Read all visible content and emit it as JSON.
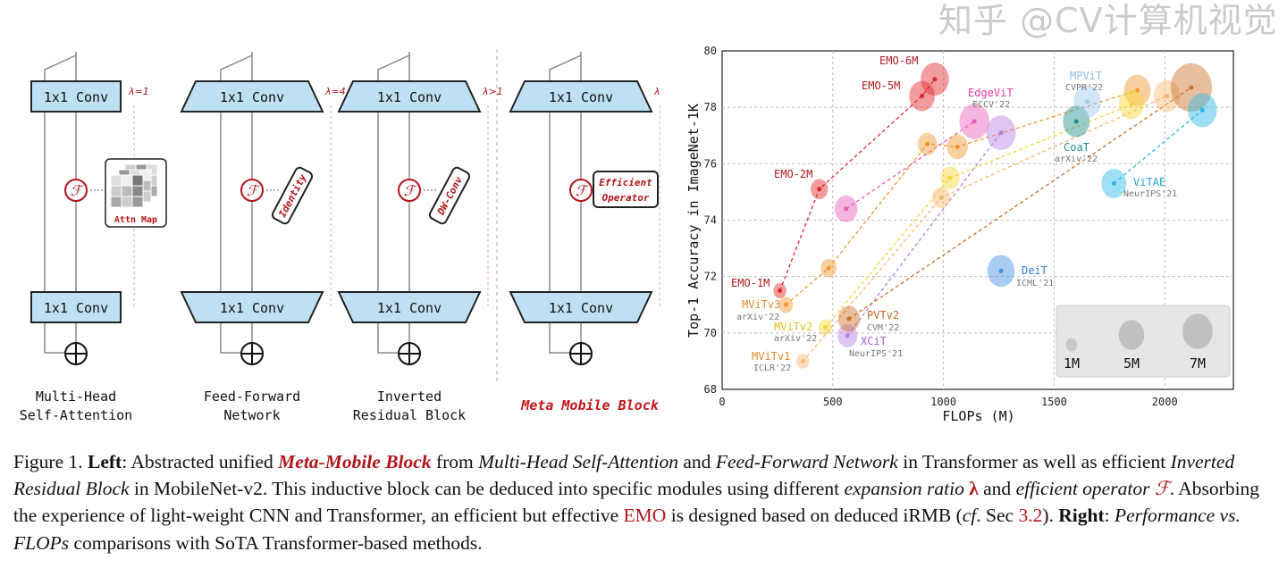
{
  "diagram": {
    "conv_label": "1x1 Conv",
    "columns": [
      {
        "name": "Multi-Head Self-Attention",
        "line1": "Multi-Head",
        "line2": "Self-Attention",
        "lambda": "λ=1",
        "operator": "Attn Map"
      },
      {
        "name": "Feed-Forward Network",
        "line1": "Feed-Forward",
        "line2": "Network",
        "lambda": "λ=4",
        "operator": "Identity"
      },
      {
        "name": "Inverted Residual Block",
        "line1": "Inverted",
        "line2": "Residual Block",
        "lambda": "λ>1",
        "operator": "DW-Conv"
      },
      {
        "name": "Meta Mobile Block",
        "line1": "Meta Mobile Block",
        "lambda": "λ",
        "operator1": "Efficient",
        "operator2": "Operator"
      }
    ],
    "f_symbol": "ℱ"
  },
  "chart_data": {
    "type": "scatter",
    "xlabel": "FLOPs (M)",
    "ylabel": "Top-1 Accuracy in ImageNet-1K",
    "xlim": [
      0,
      2310
    ],
    "ylim": [
      68,
      80
    ],
    "xticks": [
      0,
      500,
      1000,
      1500,
      2000
    ],
    "yticks": [
      68,
      70,
      72,
      74,
      76,
      78,
      80
    ],
    "grid": true,
    "size_legend": {
      "placement": "bottom-right",
      "entries": [
        {
          "label": "1M",
          "params": 1
        },
        {
          "label": "5M",
          "params": 5
        },
        {
          "label": "7M",
          "params": 7
        }
      ]
    },
    "series": [
      {
        "name": "EMO",
        "color": "#e0262b",
        "labels": [
          "EMO-1M",
          "EMO-2M",
          "EMO-5M",
          "EMO-6M"
        ],
        "points": [
          [
            261,
            71.5,
            1.3
          ],
          [
            439,
            75.1,
            2.3
          ],
          [
            903,
            78.4,
            5.1
          ],
          [
            961,
            79.0,
            6.1
          ]
        ]
      },
      {
        "name": "MViTv3",
        "venue": "arXiv'22",
        "color": "#f0962a",
        "points": [
          [
            288,
            71.0,
            1.5
          ],
          [
            481,
            72.3,
            1.9
          ],
          [
            927,
            76.7,
            2.8
          ],
          [
            1063,
            76.6,
            3.4
          ],
          [
            1876,
            78.6,
            5.5
          ]
        ]
      },
      {
        "name": "MViTv2",
        "venue": "arXiv'22",
        "color": "#f7d43a",
        "points": [
          [
            466,
            70.2,
            1.4
          ],
          [
            1030,
            75.5,
            2.9
          ],
          [
            1850,
            78.1,
            4.9
          ]
        ]
      },
      {
        "name": "MViTv1",
        "venue": "ICLR'22",
        "color": "#f8b870",
        "points": [
          [
            365,
            69.0,
            1.3
          ],
          [
            990,
            74.8,
            2.5
          ],
          [
            2010,
            78.4,
            5.6
          ]
        ]
      },
      {
        "name": "EdgeViT",
        "venue": "ECCV'22",
        "color": "#e85cb5",
        "points": [
          [
            560,
            74.4,
            4.0
          ],
          [
            1140,
            77.5,
            6.9
          ]
        ]
      },
      {
        "name": "XCiT",
        "venue": "NeurIPS'21",
        "color": "#b87fe0",
        "points": [
          [
            566,
            69.9,
            3.0
          ],
          [
            1260,
            77.1,
            6.7
          ]
        ]
      },
      {
        "name": "PVTv2",
        "venue": "CVM'22",
        "color": "#c9702a",
        "points": [
          [
            573,
            70.5,
            3.7
          ],
          [
            2120,
            78.7,
            13.1
          ]
        ]
      },
      {
        "name": "CoaT",
        "venue": "arXiv'22",
        "color": "#1c8f8a",
        "points": [
          [
            1600,
            77.5,
            5.5
          ]
        ]
      },
      {
        "name": "MPViT",
        "venue": "CVPR'22",
        "color": "#9cc9ea",
        "points": [
          [
            1650,
            78.2,
            5.8
          ]
        ]
      },
      {
        "name": "DeiT",
        "venue": "ICML'21",
        "color": "#3d8fe0",
        "points": [
          [
            1260,
            72.2,
            5.7
          ]
        ]
      },
      {
        "name": "ViTAE",
        "venue": "NeurIPS'21",
        "color": "#2ab8e6",
        "points": [
          [
            1770,
            75.3,
            4.8
          ],
          [
            2170,
            77.9,
            6.5
          ]
        ]
      }
    ]
  },
  "caption": {
    "figure": "Figure 1.",
    "left": "Left",
    "t1": ": Abstracted unified ",
    "mmb": "Meta-Mobile Block",
    "t2": " from ",
    "mhsa": "Multi-Head Self-Attention",
    "t3": " and ",
    "ffn": "Feed-Forward Network",
    "t4": " in Transformer as well as efficient ",
    "irb": "Inverted Residual Block",
    "t5": " in MobileNet-v2. This inductive block can be deduced into specific modules using different ",
    "exp": "expansion ratio",
    "lam": " λ",
    "t6": " and ",
    "eff": "efficient operator",
    "F": " ℱ",
    "t7": ". Absorbing the experience of light-weight CNN and Transformer, an efficient but effective ",
    "emo": "EMO",
    "t8": " is designed based on deduced iRMB (",
    "cf": "cf",
    "t9": ". Sec ",
    "sec": "3.2",
    "t10": "). ",
    "right": "Right",
    "t11": ": ",
    "perf": "Performance vs. FLOPs",
    "t12": " comparisons with SoTA Transformer-based methods."
  },
  "watermark": "知乎 @CV计算机视觉"
}
